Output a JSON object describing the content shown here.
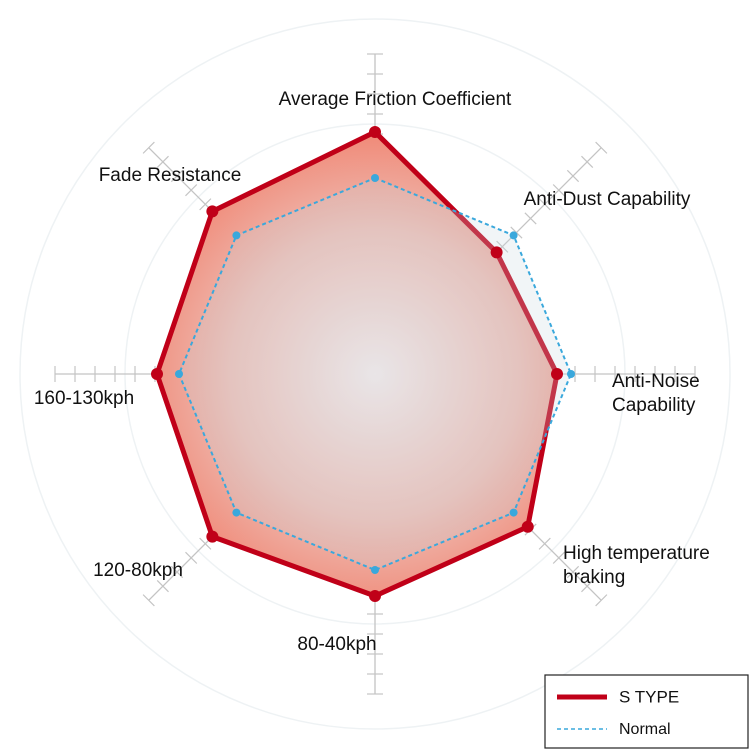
{
  "chart_data": {
    "type": "radar",
    "categories": [
      "Average Friction Coefficient",
      "Anti-Dust Capability",
      "Anti-Noise\nCapability",
      "High temperature\nbraking",
      "80-40kph",
      "120-80kph",
      "160-130kph",
      "Fade Resistance"
    ],
    "rlim": [
      0,
      16
    ],
    "rticks": [
      1,
      2,
      3,
      4,
      5,
      6,
      7,
      8,
      9,
      10,
      11,
      12,
      13,
      14,
      15,
      16
    ],
    "series": [
      {
        "name": "S TYPE",
        "color": "#c00018",
        "values": [
          12.1,
          8.6,
          9.1,
          10.8,
          11.1,
          11.5,
          10.9,
          11.5
        ]
      },
      {
        "name": "Normal",
        "color": "#3aa8dc",
        "values": [
          9.8,
          9.8,
          9.8,
          9.8,
          9.8,
          9.8,
          9.8,
          9.8
        ]
      }
    ],
    "legend": "lower right"
  }
}
